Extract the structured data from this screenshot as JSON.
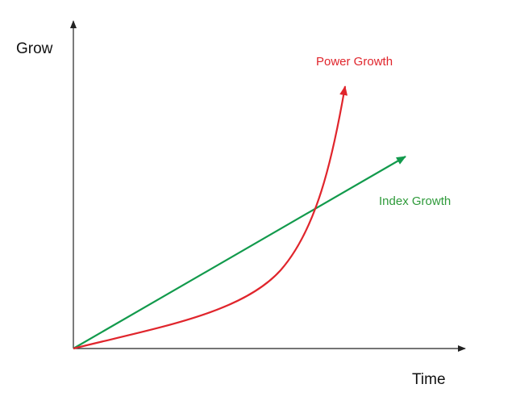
{
  "axes": {
    "y_label": "Grow",
    "x_label": "Time"
  },
  "curves": {
    "power": {
      "label": "Power Growth"
    },
    "index": {
      "label": "Index Growth"
    }
  }
}
